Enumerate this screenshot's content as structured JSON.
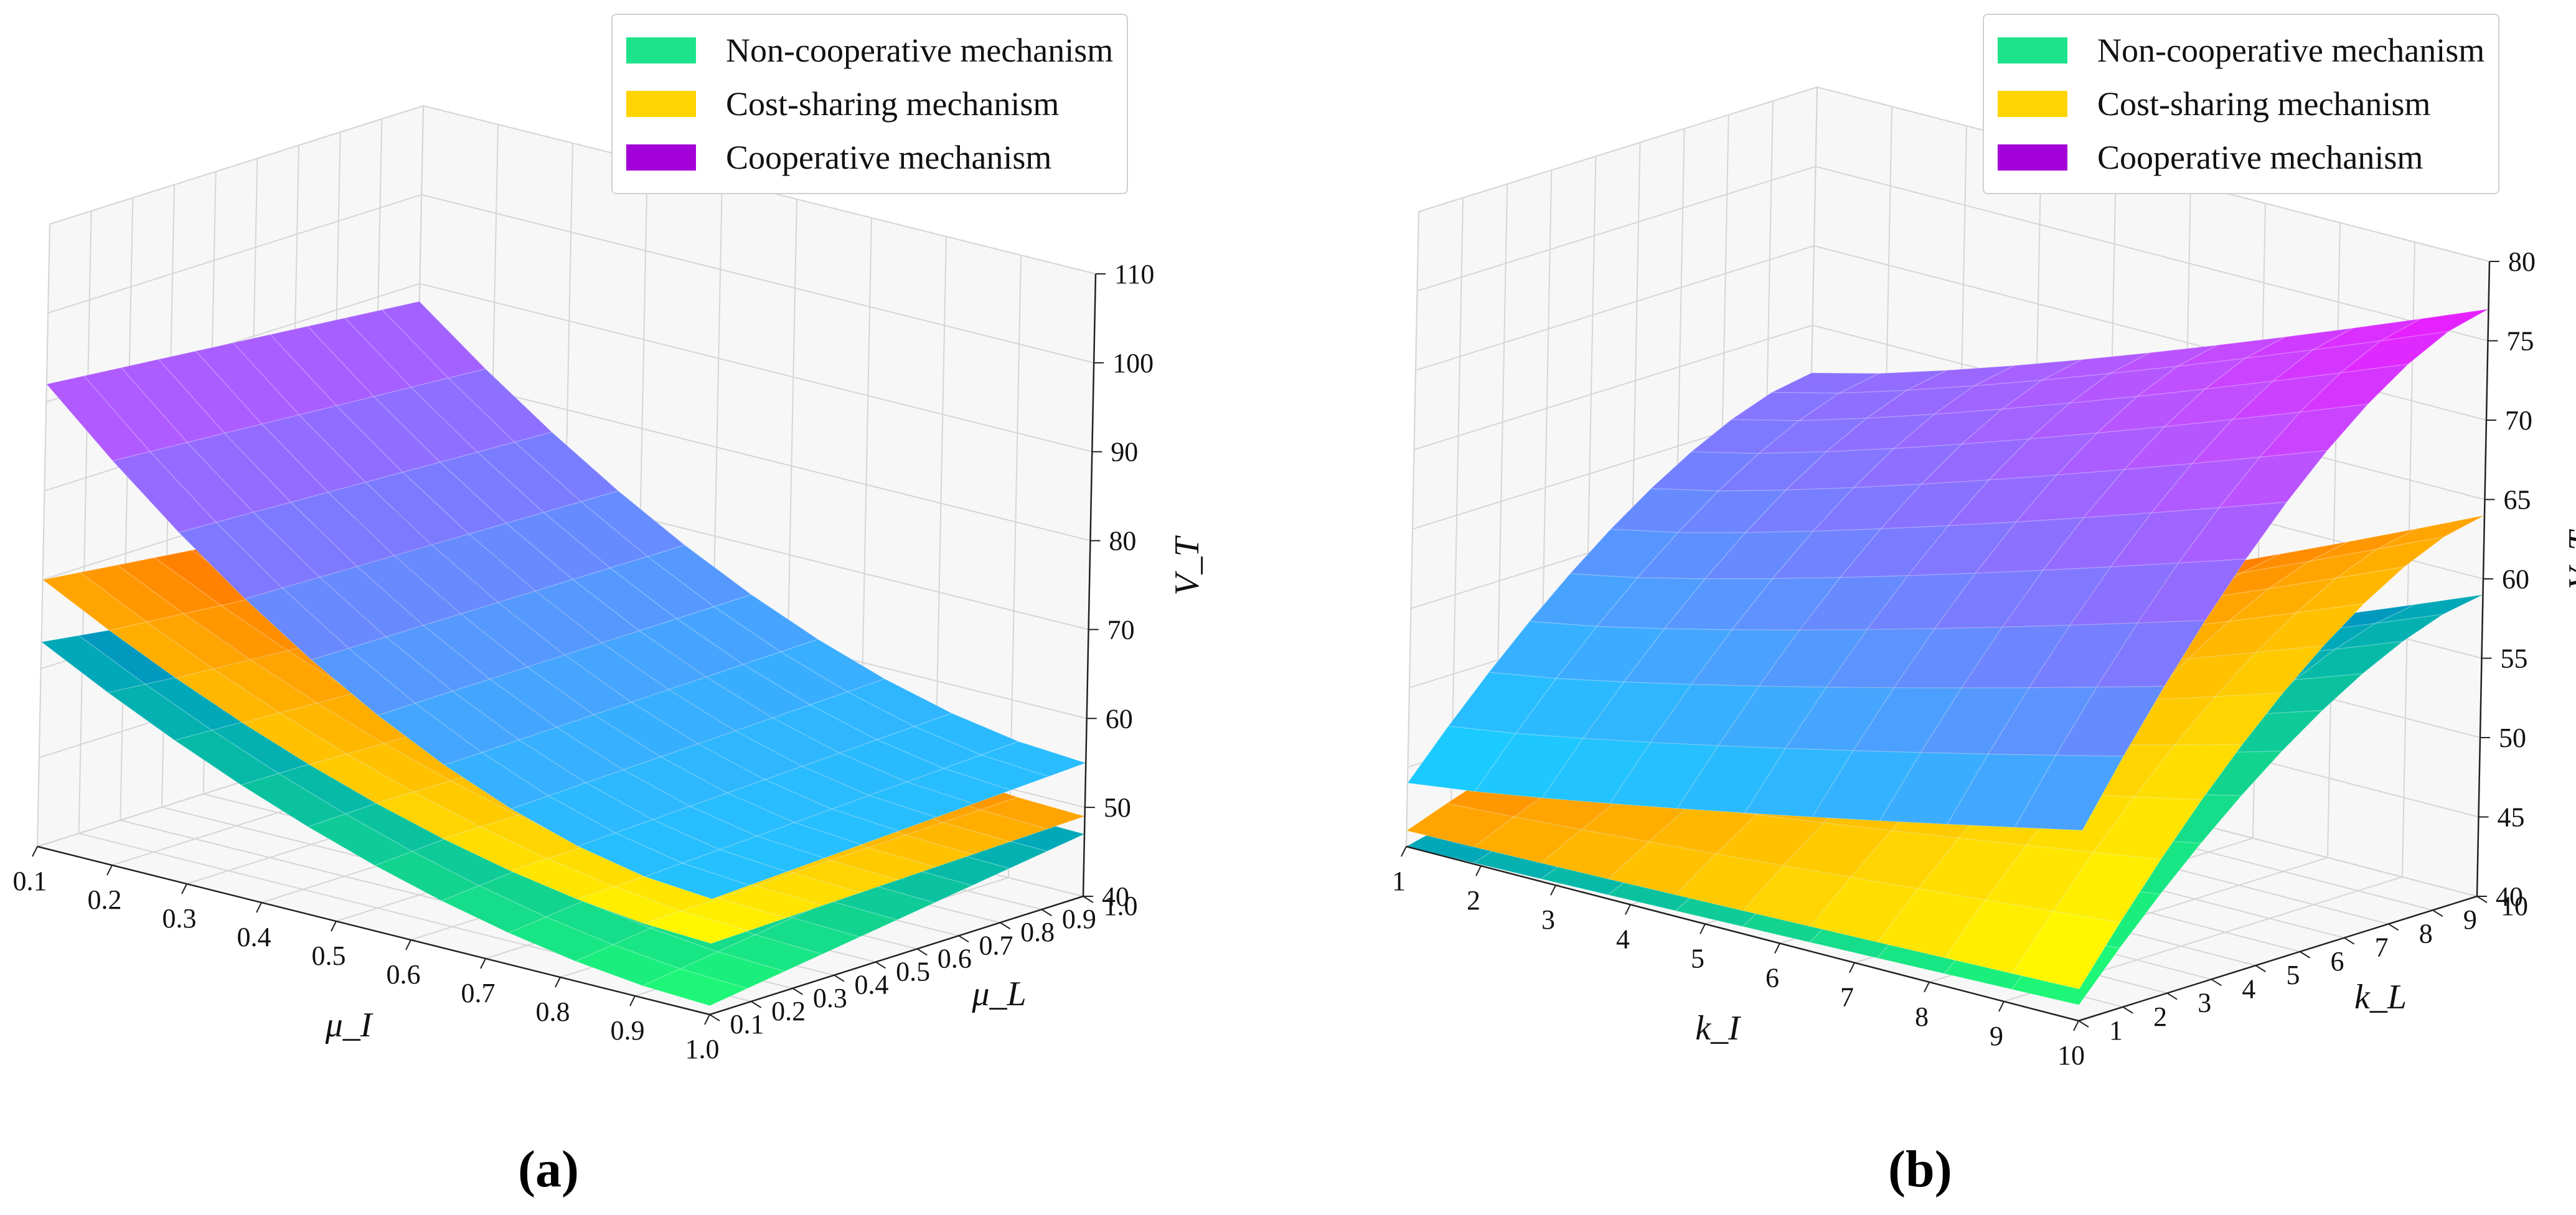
{
  "colors": {
    "non_cooperative": "#1de38a",
    "cost_sharing": "#ffd400",
    "cooperative": "#a400d8"
  },
  "chart_data": [
    {
      "type": "surface3d",
      "caption": "(a)",
      "xlabel": "μ_I",
      "ylabel": "μ_L",
      "zlabel": "V_T",
      "x_ticks": [
        "0.1",
        "0.2",
        "0.3",
        "0.4",
        "0.5",
        "0.6",
        "0.7",
        "0.8",
        "0.9",
        "1.0"
      ],
      "y_ticks": [
        "0.1",
        "0.2",
        "0.3",
        "0.4",
        "0.5",
        "0.6",
        "0.7",
        "0.8",
        "0.9",
        "1.0"
      ],
      "z_ticks": [
        "40",
        "50",
        "60",
        "70",
        "80",
        "90",
        "100",
        "110"
      ],
      "zlim": [
        40,
        110
      ],
      "legend": [
        "Non-cooperative mechanism",
        "Cost-sharing mechanism",
        "Cooperative mechanism"
      ],
      "series": [
        {
          "name": "Cooperative mechanism",
          "corners": {
            "x_min_y_min": 92,
            "x_max_y_min": 53,
            "x_min_y_max": 88,
            "x_max_y_max": 55
          }
        },
        {
          "name": "Cost-sharing mechanism",
          "corners": {
            "x_min_y_min": 70,
            "x_max_y_min": 48,
            "x_min_y_max": 65,
            "x_max_y_max": 49
          }
        },
        {
          "name": "Non-cooperative mechanism",
          "corners": {
            "x_min_y_min": 63,
            "x_max_y_min": 41,
            "x_min_y_max": 57,
            "x_max_y_max": 47
          }
        }
      ]
    },
    {
      "type": "surface3d",
      "caption": "(b)",
      "xlabel": "k_I",
      "ylabel": "k_L",
      "zlabel": "V_T",
      "x_ticks": [
        "1",
        "2",
        "3",
        "4",
        "5",
        "6",
        "7",
        "8",
        "9",
        "10"
      ],
      "y_ticks": [
        "1",
        "2",
        "3",
        "4",
        "5",
        "6",
        "7",
        "8",
        "9",
        "10"
      ],
      "z_ticks": [
        "40",
        "45",
        "50",
        "55",
        "60",
        "65",
        "70",
        "75",
        "80"
      ],
      "zlim": [
        40,
        80
      ],
      "legend": [
        "Non-cooperative mechanism",
        "Cost-sharing mechanism",
        "Cooperative mechanism"
      ],
      "series": [
        {
          "name": "Cooperative mechanism",
          "corners": {
            "x_min_y_min": 44,
            "x_max_y_min": 52,
            "x_min_y_max": 62,
            "x_max_y_max": 77
          }
        },
        {
          "name": "Cost-sharing mechanism",
          "corners": {
            "x_min_y_min": 41,
            "x_max_y_min": 42,
            "x_min_y_max": 47,
            "x_max_y_max": 64
          }
        },
        {
          "name": "Non-cooperative mechanism",
          "corners": {
            "x_min_y_min": 40,
            "x_max_y_min": 41,
            "x_min_y_max": 44,
            "x_max_y_max": 59
          }
        }
      ]
    }
  ]
}
